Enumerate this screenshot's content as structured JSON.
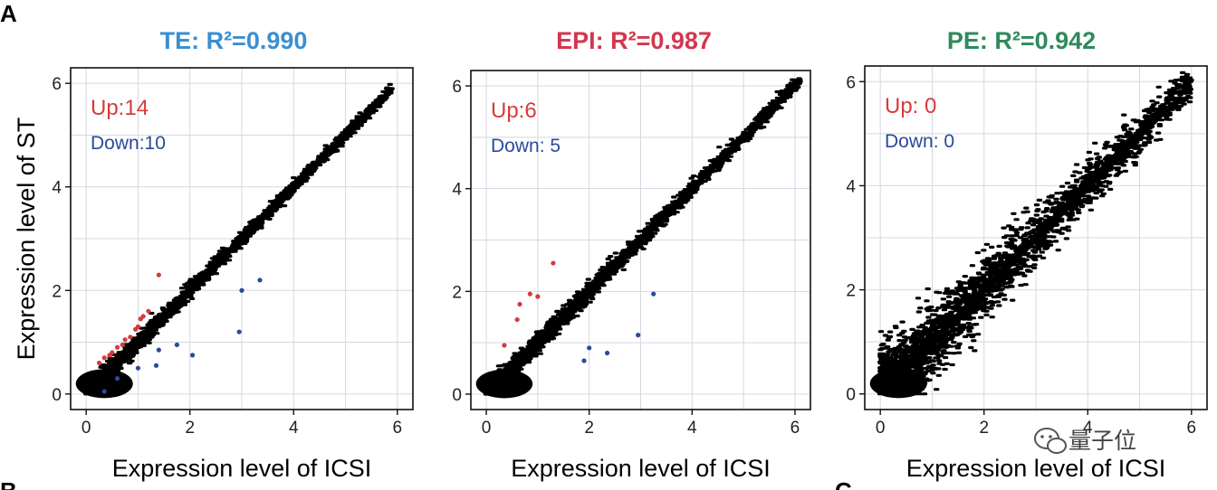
{
  "panel_letters": {
    "top_left": "A",
    "bottom_left": "B",
    "bottom_right": "C"
  },
  "watermark": {
    "text": "量子位",
    "icon": "wechat-icon",
    "color": "#444444"
  },
  "chart_data": [
    {
      "type": "scatter",
      "title": "TE: R²=0.990",
      "title_color": "#3b8fd0",
      "xlabel": "Expression level of ICSI",
      "ylabel": "Expression level of ST",
      "xlim": [
        -0.3,
        6.3
      ],
      "ylim": [
        -0.3,
        6.3
      ],
      "xticks": [
        0,
        2,
        4,
        6
      ],
      "yticks": [
        0,
        2,
        4,
        6
      ],
      "grid": true,
      "up_label": "Up:14",
      "down_label": "Down:10",
      "up_color": "#d63b3b",
      "down_color": "#2a4a9a",
      "cloud": {
        "spread_low": 0.1,
        "spread_high": 0.06,
        "max_x": 5.9,
        "dense": true
      },
      "series": [
        {
          "name": "Up",
          "color": "#d63b3b",
          "points": [
            [
              0.25,
              0.6
            ],
            [
              0.35,
              0.7
            ],
            [
              0.45,
              0.75
            ],
            [
              0.5,
              0.8
            ],
            [
              0.6,
              0.9
            ],
            [
              0.7,
              0.95
            ],
            [
              0.75,
              1.05
            ],
            [
              0.85,
              1.1
            ],
            [
              0.95,
              1.25
            ],
            [
              1.0,
              1.3
            ],
            [
              1.05,
              1.45
            ],
            [
              1.1,
              1.5
            ],
            [
              1.2,
              1.6
            ],
            [
              1.4,
              2.3
            ]
          ]
        },
        {
          "name": "Down",
          "color": "#2a4a9a",
          "points": [
            [
              0.35,
              0.05
            ],
            [
              0.6,
              0.3
            ],
            [
              1.0,
              0.5
            ],
            [
              1.35,
              0.55
            ],
            [
              1.4,
              0.85
            ],
            [
              1.75,
              0.95
            ],
            [
              2.05,
              0.75
            ],
            [
              2.95,
              1.2
            ],
            [
              3.0,
              2.0
            ],
            [
              3.35,
              2.2
            ]
          ]
        }
      ]
    },
    {
      "type": "scatter",
      "title": "EPI: R²=0.987",
      "title_color": "#d4364f",
      "xlabel": "Expression level of ICSI",
      "ylabel": "",
      "xlim": [
        -0.3,
        6.3
      ],
      "ylim": [
        -0.3,
        6.3
      ],
      "xticks": [
        0,
        2,
        4,
        6
      ],
      "yticks": [
        0,
        2,
        4,
        6
      ],
      "grid": true,
      "up_label": "Up:6",
      "down_label": "Down: 5",
      "up_color": "#d63b3b",
      "down_color": "#2a4a9a",
      "cloud": {
        "spread_low": 0.12,
        "spread_high": 0.07,
        "max_x": 6.1,
        "dense": true
      },
      "series": [
        {
          "name": "Up",
          "color": "#d63b3b",
          "points": [
            [
              0.35,
              0.95
            ],
            [
              0.6,
              1.45
            ],
            [
              0.65,
              1.75
            ],
            [
              0.85,
              1.95
            ],
            [
              1.0,
              1.9
            ],
            [
              1.3,
              2.55
            ]
          ]
        },
        {
          "name": "Down",
          "color": "#2a4a9a",
          "points": [
            [
              1.9,
              0.65
            ],
            [
              2.0,
              0.9
            ],
            [
              2.35,
              0.8
            ],
            [
              2.95,
              1.15
            ],
            [
              3.25,
              1.95
            ]
          ]
        }
      ]
    },
    {
      "type": "scatter",
      "title": "PE: R²=0.942",
      "title_color": "#2e8b5a",
      "xlabel": "Expression level of ICSI",
      "ylabel": "",
      "xlim": [
        -0.3,
        6.3
      ],
      "ylim": [
        -0.3,
        6.3
      ],
      "xticks": [
        0,
        2,
        4,
        6
      ],
      "yticks": [
        0,
        2,
        4,
        6
      ],
      "grid": true,
      "up_label": "Up: 0",
      "down_label": "Down: 0",
      "up_color": "#d63b3b",
      "down_color": "#2a4a9a",
      "cloud": {
        "spread_low": 0.45,
        "spread_high": 0.2,
        "max_x": 6.0,
        "dense": true
      },
      "series": [
        {
          "name": "Up",
          "color": "#d63b3b",
          "points": []
        },
        {
          "name": "Down",
          "color": "#2a4a9a",
          "points": []
        }
      ]
    }
  ]
}
